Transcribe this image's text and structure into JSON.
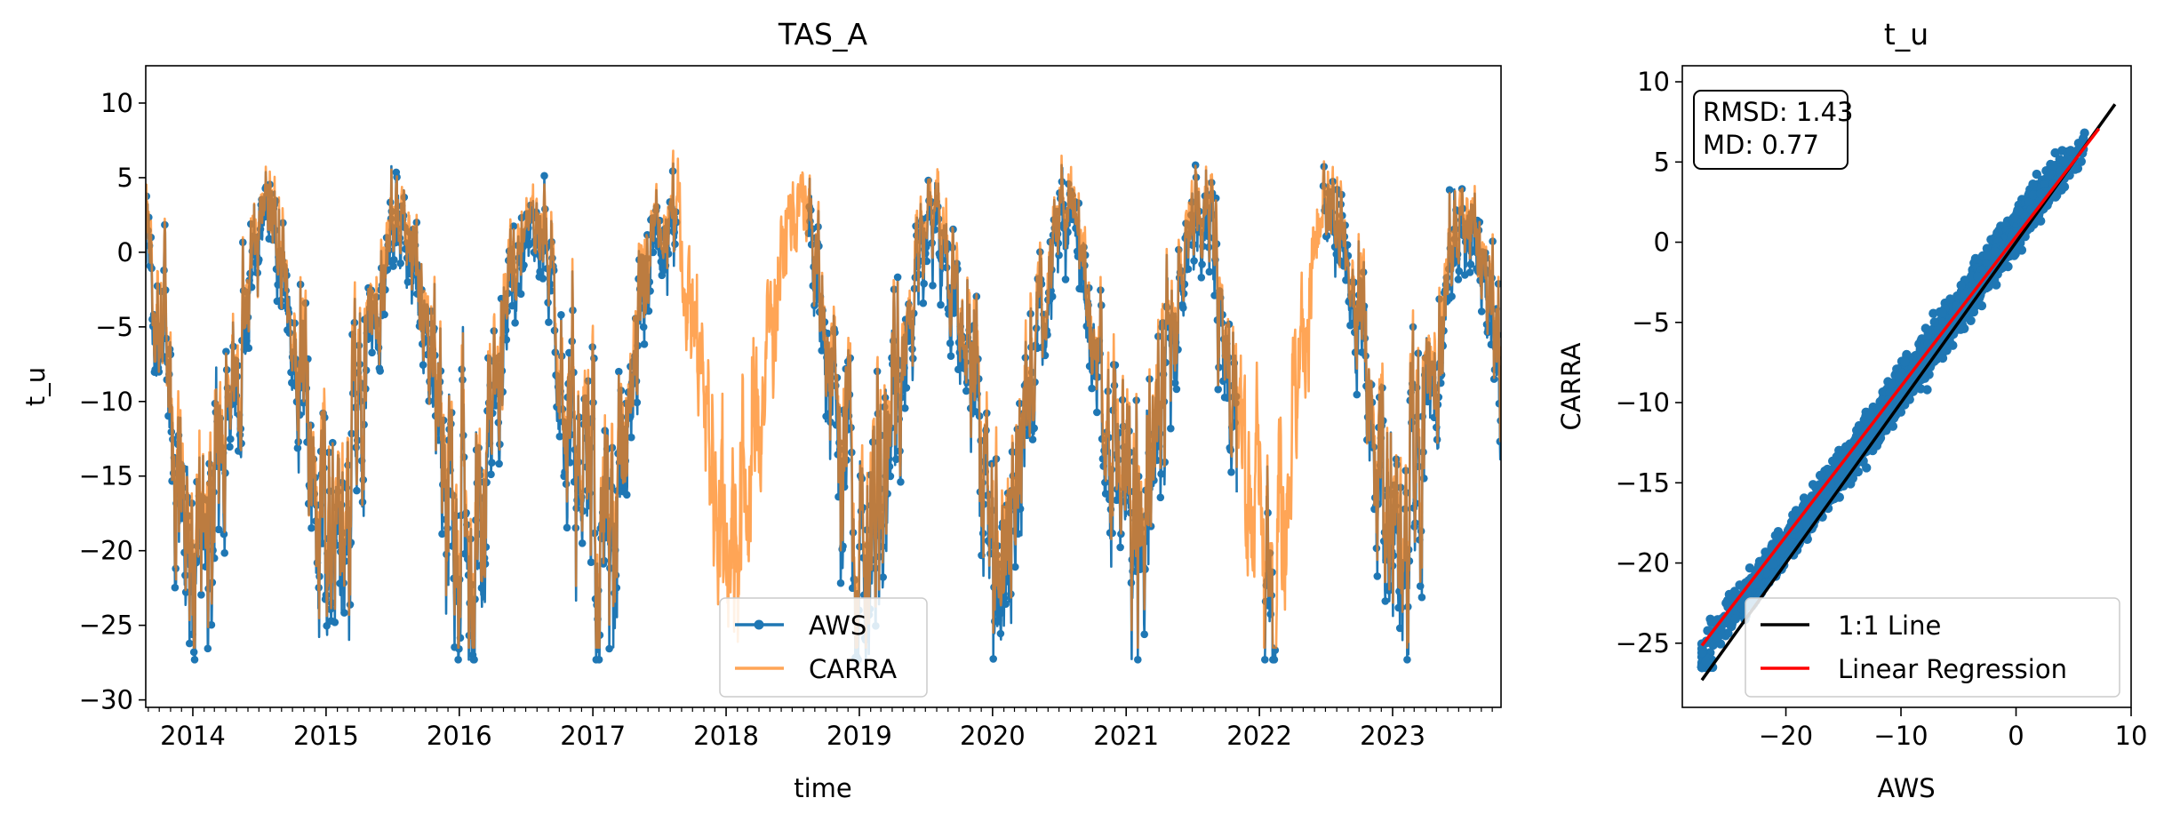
{
  "chart_data": [
    {
      "type": "line",
      "title": "TAS_A",
      "xlabel": "time",
      "ylabel": "t_u",
      "xlim": [
        "2013-08-25",
        "2023-10-25"
      ],
      "ylim": [
        -30.5,
        12.5
      ],
      "x_ticks": [
        "2014",
        "2015",
        "2016",
        "2017",
        "2018",
        "2019",
        "2020",
        "2021",
        "2022",
        "2023"
      ],
      "y_ticks": [
        10,
        5,
        0,
        -5,
        -10,
        -15,
        -20,
        -25,
        -30
      ],
      "y_tick_labels": [
        "10",
        "5",
        "0",
        "−5",
        "−10",
        "−15",
        "−20",
        "−25",
        "−30"
      ],
      "legend_position": "lower center",
      "grid": false,
      "series": [
        {
          "name": "AWS",
          "color": "#1f77b4",
          "marker": "circle",
          "gaps": [
            [
              "2017-08-20",
              "2018-08-15"
            ],
            [
              "2021-11-01",
              "2022-01-15"
            ],
            [
              "2022-02-15",
              "2022-06-25"
            ]
          ],
          "data_range": [
            "2013-08-25",
            "2023-10-25"
          ],
          "min": -27.3,
          "max": 7.5
        },
        {
          "name": "CARRA",
          "color": "#ff7f0e",
          "opacity": 0.7,
          "data_range": [
            "2013-08-25",
            "2023-10-25"
          ],
          "min": -26.5,
          "max": 8.6
        }
      ]
    },
    {
      "type": "scatter",
      "title": "t_u",
      "xlabel": "AWS",
      "ylabel": "CARRA",
      "xlim": [
        -29,
        10
      ],
      "ylim": [
        -29,
        11
      ],
      "x_ticks": [
        -20,
        -10,
        0,
        10
      ],
      "x_tick_labels": [
        "−20",
        "−10",
        "0",
        "10"
      ],
      "y_ticks": [
        10,
        5,
        0,
        -5,
        -10,
        -15,
        -20,
        -25
      ],
      "y_tick_labels": [
        "10",
        "5",
        "0",
        "−5",
        "−10",
        "−15",
        "−20",
        "−25"
      ],
      "stats": {
        "rmsd_label": "RMSD: 1.43",
        "md_label": "MD: 0.77",
        "rmsd": 1.43,
        "md": 0.77
      },
      "points_color": "#1f77b4",
      "one_to_one": {
        "name": "1:1 Line",
        "color": "#000000",
        "x": [
          -27.3,
          8.6
        ],
        "y": [
          -27.3,
          8.6
        ]
      },
      "regression": {
        "name": "Linear Regression",
        "color": "#ff0000",
        "slope": 0.934,
        "intercept": 0.35,
        "x": [
          -27.3,
          7.2
        ]
      },
      "legend_position": "lower right",
      "grid": false
    }
  ]
}
